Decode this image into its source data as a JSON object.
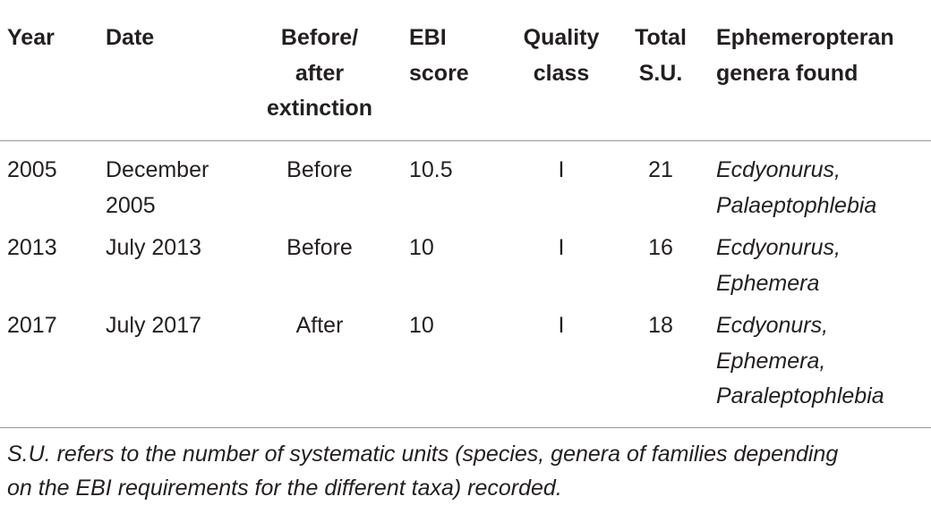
{
  "table": {
    "header": [
      [
        "Year"
      ],
      [
        "Date"
      ],
      [
        "Before/",
        "after",
        "extinction"
      ],
      [
        "EBI",
        "score"
      ],
      [
        "Quality",
        "class"
      ],
      [
        "Total",
        "S.U."
      ],
      [
        "Ephemeropteran",
        "genera found"
      ]
    ],
    "rows": [
      [
        [
          "2005"
        ],
        [
          "December",
          "2005"
        ],
        [
          "Before"
        ],
        [
          "10.5"
        ],
        [
          "I"
        ],
        [
          "21"
        ],
        [
          "Ecdyonurus,",
          "Palaeptophlebia"
        ]
      ],
      [
        [
          "2013"
        ],
        [
          "July 2013"
        ],
        [
          "Before"
        ],
        [
          "10"
        ],
        [
          "I"
        ],
        [
          "16"
        ],
        [
          "Ecdyonurus,",
          "Ephemera"
        ]
      ],
      [
        [
          "2017"
        ],
        [
          "July 2017"
        ],
        [
          "After"
        ],
        [
          "10"
        ],
        [
          "I"
        ],
        [
          "18"
        ],
        [
          "Ecdyonurs,",
          "Ephemera,",
          "Paraleptophlebia"
        ]
      ]
    ],
    "note": [
      "S.U. refers to the number of systematic units (species, genera of families depending",
      "on the EBI requirements for the different taxa) recorded."
    ]
  }
}
